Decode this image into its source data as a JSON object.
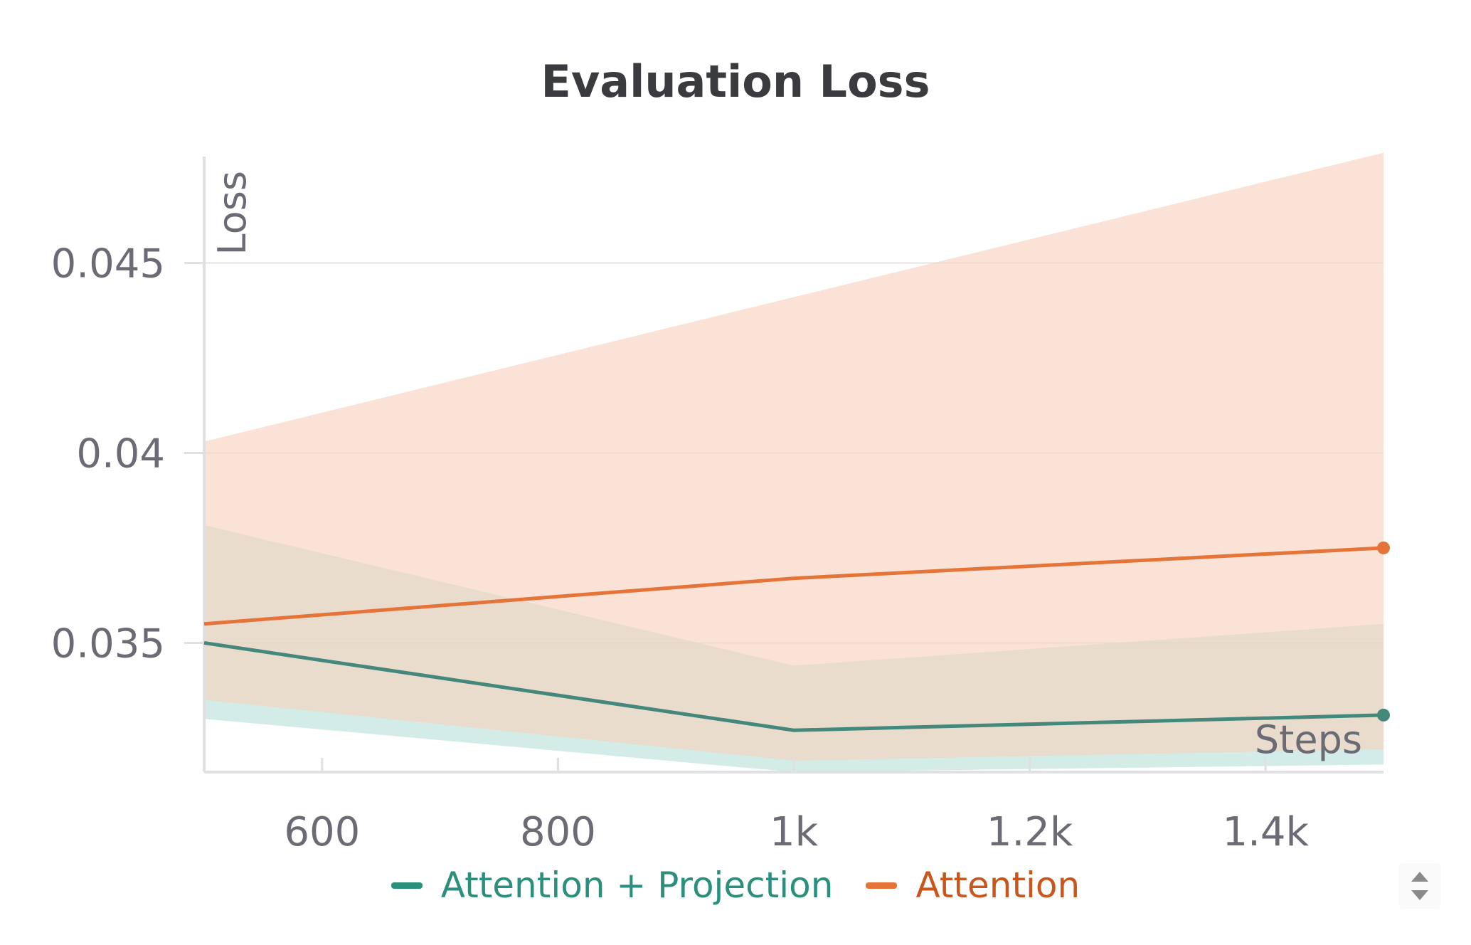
{
  "chart_data": {
    "type": "line",
    "title": "Evaluation Loss",
    "xlabel": "Steps",
    "ylabel": "Loss",
    "xlim": [
      500,
      1500
    ],
    "ylim": [
      0.0316,
      0.0478
    ],
    "xticks": [
      600,
      800,
      1000,
      1200,
      1400
    ],
    "xtick_labels": [
      "600",
      "800",
      "1k",
      "1.2k",
      "1.4k"
    ],
    "yticks": [
      0.035,
      0.04,
      0.045
    ],
    "ytick_labels": [
      "0.035",
      "0.04",
      "0.045"
    ],
    "grid": "horizontal",
    "legend_position": "bottom",
    "series": [
      {
        "name": "Attention + Projection",
        "color": "#2a8f7d",
        "line_color": "#43887a",
        "band_color": "#b0ddd5",
        "x": [
          500,
          1000,
          1500
        ],
        "values": [
          0.035,
          0.0327,
          0.0331
        ],
        "band_upper": [
          0.0381,
          0.0344,
          0.0355
        ],
        "band_lower": [
          0.033,
          0.0316,
          0.0318
        ]
      },
      {
        "name": "Attention",
        "color": "#c9571c",
        "line_color": "#e57439",
        "band_color": "#f7d2bd",
        "x": [
          500,
          1000,
          1500
        ],
        "values": [
          0.0355,
          0.0367,
          0.0375
        ],
        "band_upper": [
          0.0403,
          0.0441,
          0.0479
        ],
        "band_lower": [
          0.0335,
          0.0319,
          0.0322
        ]
      }
    ]
  },
  "controls": {
    "scroll_icon": "up-down-chevron-icon"
  }
}
